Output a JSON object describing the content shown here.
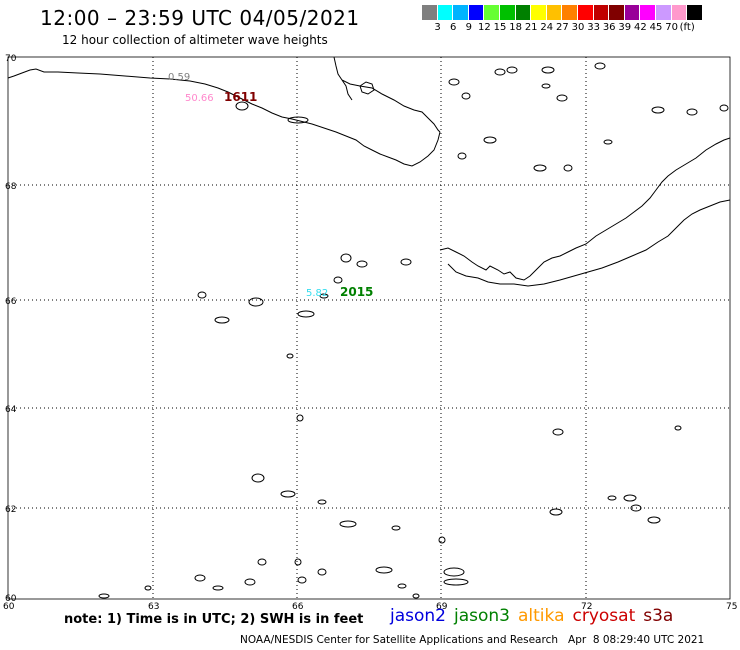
{
  "header": {
    "title": "12:00 – 23:59 UTC 04/05/2021",
    "subtitle": "12 hour collection of altimeter wave heights"
  },
  "color_scale": {
    "colors": [
      "#7f7f7f",
      "#00ffff",
      "#00b4ff",
      "#0000ff",
      "#66ff33",
      "#00c000",
      "#008000",
      "#ffff00",
      "#ffc000",
      "#ff8000",
      "#ff0000",
      "#c00000",
      "#800000",
      "#990099",
      "#ff00ff",
      "#cc99ff",
      "#ff99cc",
      "#000000"
    ],
    "labels": [
      "3",
      "6",
      "9",
      "12",
      "15",
      "18",
      "21",
      "24",
      "27",
      "30",
      "33",
      "36",
      "39",
      "42",
      "45",
      "70",
      "(ft)"
    ]
  },
  "map": {
    "lat_labels": [
      "70",
      "68",
      "66",
      "64",
      "62",
      "60"
    ],
    "lon_labels": [
      "60",
      "63",
      "66",
      "69",
      "72",
      "75"
    ]
  },
  "observations": [
    {
      "value": "0.59",
      "color": "#808080"
    },
    {
      "value": "50.66",
      "color": "#ff88cc"
    },
    {
      "value": "1611",
      "color": "#800000"
    },
    {
      "value": "5.82",
      "color": "#33ddee"
    },
    {
      "value": "2015",
      "color": "#008000"
    }
  ],
  "footer": {
    "note": "note: 1) Time is in UTC; 2) SWH is in feet",
    "satellites": [
      {
        "name": "jason2",
        "color": "#0000dd"
      },
      {
        "name": "jason3",
        "color": "#008000"
      },
      {
        "name": "altika",
        "color": "#ff9900"
      },
      {
        "name": "cryosat",
        "color": "#cc0000"
      },
      {
        "name": "s3a",
        "color": "#800000"
      }
    ],
    "credit": "NOAA/NESDIS Center for Satellite Applications and Research   Apr  8 08:29:40 UTC 2021"
  }
}
